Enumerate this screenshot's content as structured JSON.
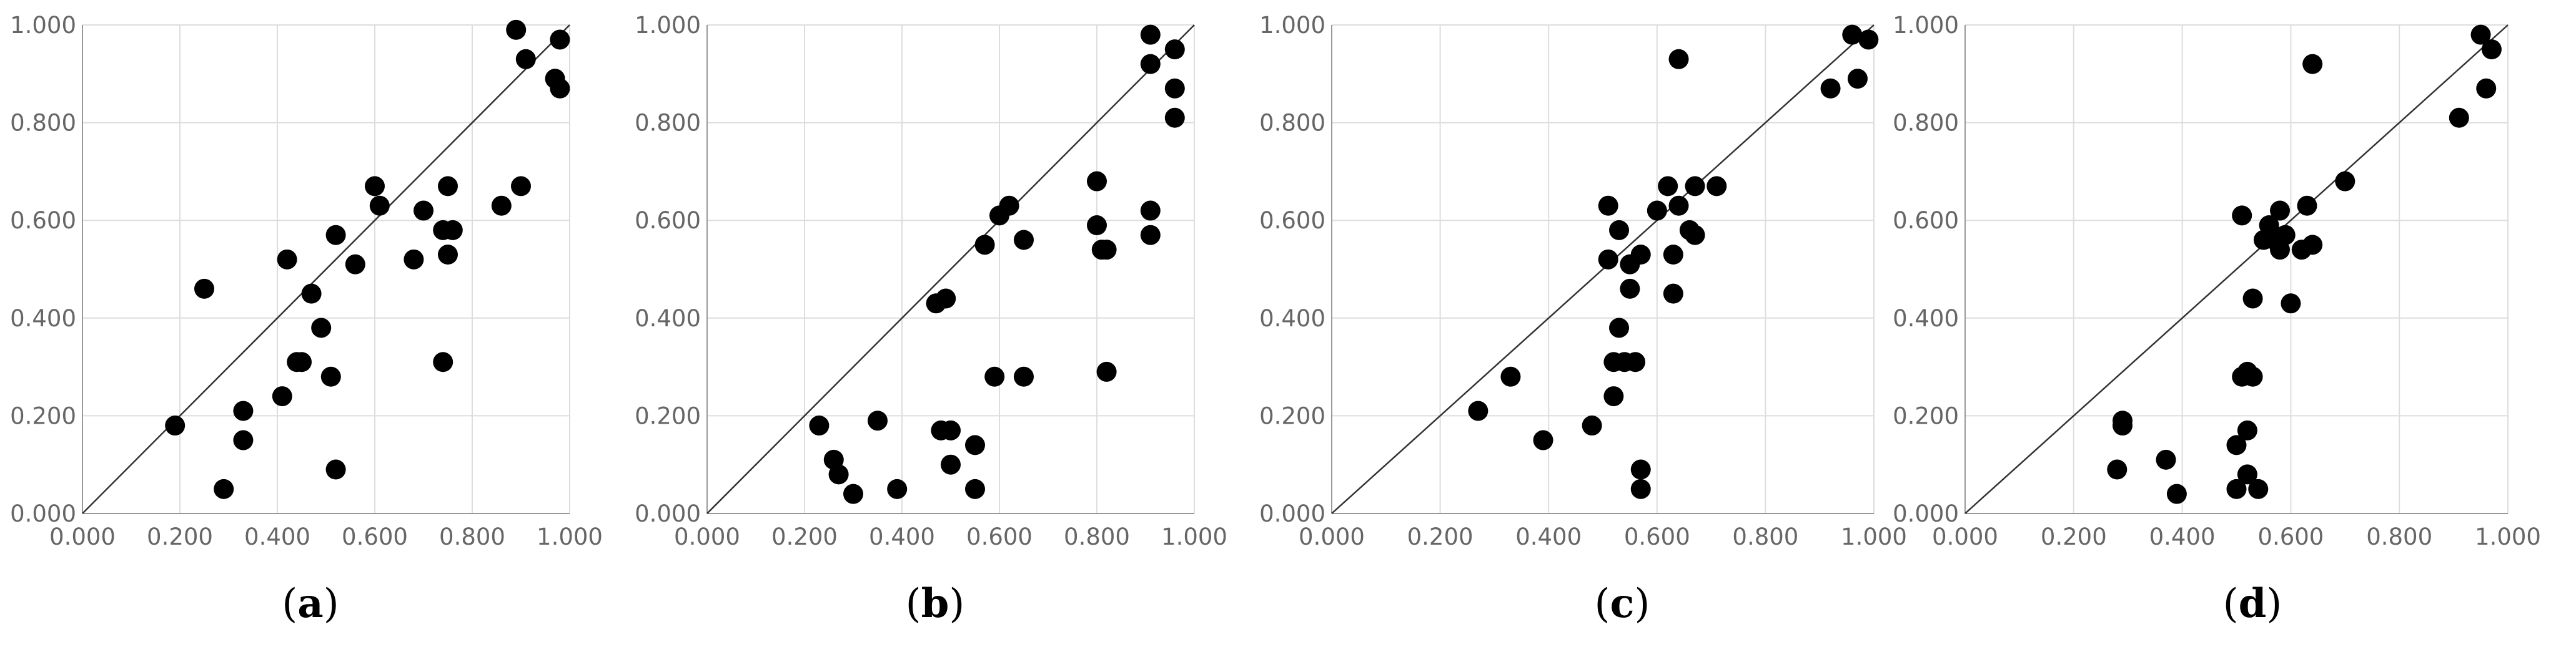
{
  "chart_data": [
    {
      "type": "scatter",
      "panel_label": "a",
      "xlim": [
        0,
        1
      ],
      "ylim": [
        0,
        1
      ],
      "xticks": [
        "0.000",
        "0.200",
        "0.400",
        "0.600",
        "0.800",
        "1.000"
      ],
      "yticks": [
        "0.000",
        "0.200",
        "0.400",
        "0.600",
        "0.800",
        "1.000"
      ],
      "grid": true,
      "reference_line": "y = x",
      "points": [
        [
          0.19,
          0.18
        ],
        [
          0.25,
          0.46
        ],
        [
          0.29,
          0.05
        ],
        [
          0.33,
          0.21
        ],
        [
          0.33,
          0.15
        ],
        [
          0.41,
          0.24
        ],
        [
          0.42,
          0.52
        ],
        [
          0.44,
          0.31
        ],
        [
          0.45,
          0.31
        ],
        [
          0.47,
          0.45
        ],
        [
          0.49,
          0.38
        ],
        [
          0.51,
          0.28
        ],
        [
          0.52,
          0.57
        ],
        [
          0.52,
          0.09
        ],
        [
          0.56,
          0.51
        ],
        [
          0.6,
          0.67
        ],
        [
          0.61,
          0.63
        ],
        [
          0.68,
          0.52
        ],
        [
          0.7,
          0.62
        ],
        [
          0.74,
          0.58
        ],
        [
          0.74,
          0.31
        ],
        [
          0.75,
          0.67
        ],
        [
          0.75,
          0.53
        ],
        [
          0.76,
          0.58
        ],
        [
          0.86,
          0.63
        ],
        [
          0.89,
          0.99
        ],
        [
          0.91,
          0.93
        ],
        [
          0.9,
          0.67
        ],
        [
          0.97,
          0.89
        ],
        [
          0.98,
          0.87
        ],
        [
          0.98,
          0.97
        ]
      ]
    },
    {
      "type": "scatter",
      "panel_label": "b",
      "xlim": [
        0,
        1
      ],
      "ylim": [
        0,
        1
      ],
      "xticks": [
        "0.000",
        "0.200",
        "0.400",
        "0.600",
        "0.800",
        "1.000"
      ],
      "yticks": [
        "0.000",
        "0.200",
        "0.400",
        "0.600",
        "0.800",
        "1.000"
      ],
      "grid": true,
      "reference_line": "y = x",
      "points": [
        [
          0.23,
          0.18
        ],
        [
          0.26,
          0.11
        ],
        [
          0.27,
          0.08
        ],
        [
          0.3,
          0.04
        ],
        [
          0.35,
          0.19
        ],
        [
          0.39,
          0.05
        ],
        [
          0.47,
          0.43
        ],
        [
          0.48,
          0.17
        ],
        [
          0.49,
          0.44
        ],
        [
          0.5,
          0.17
        ],
        [
          0.5,
          0.1
        ],
        [
          0.55,
          0.14
        ],
        [
          0.55,
          0.05
        ],
        [
          0.57,
          0.55
        ],
        [
          0.59,
          0.28
        ],
        [
          0.6,
          0.61
        ],
        [
          0.62,
          0.63
        ],
        [
          0.65,
          0.56
        ],
        [
          0.65,
          0.28
        ],
        [
          0.8,
          0.68
        ],
        [
          0.8,
          0.59
        ],
        [
          0.81,
          0.54
        ],
        [
          0.82,
          0.54
        ],
        [
          0.82,
          0.29
        ],
        [
          0.91,
          0.98
        ],
        [
          0.91,
          0.92
        ],
        [
          0.91,
          0.62
        ],
        [
          0.91,
          0.57
        ],
        [
          0.96,
          0.95
        ],
        [
          0.96,
          0.87
        ],
        [
          0.96,
          0.81
        ]
      ]
    },
    {
      "type": "scatter",
      "panel_label": "c",
      "xlim": [
        0,
        1
      ],
      "ylim": [
        0,
        1
      ],
      "xticks": [
        "0.000",
        "0.200",
        "0.400",
        "0.600",
        "0.800",
        "1.000"
      ],
      "yticks": [
        "0.000",
        "0.200",
        "0.400",
        "0.600",
        "0.800",
        "1.000"
      ],
      "grid": true,
      "reference_line": "y = x",
      "points": [
        [
          0.27,
          0.21
        ],
        [
          0.33,
          0.28
        ],
        [
          0.39,
          0.15
        ],
        [
          0.48,
          0.18
        ],
        [
          0.51,
          0.63
        ],
        [
          0.51,
          0.52
        ],
        [
          0.52,
          0.31
        ],
        [
          0.52,
          0.24
        ],
        [
          0.53,
          0.58
        ],
        [
          0.53,
          0.38
        ],
        [
          0.54,
          0.31
        ],
        [
          0.55,
          0.46
        ],
        [
          0.55,
          0.51
        ],
        [
          0.56,
          0.31
        ],
        [
          0.57,
          0.53
        ],
        [
          0.57,
          0.09
        ],
        [
          0.57,
          0.05
        ],
        [
          0.6,
          0.62
        ],
        [
          0.62,
          0.67
        ],
        [
          0.63,
          0.53
        ],
        [
          0.63,
          0.45
        ],
        [
          0.64,
          0.93
        ],
        [
          0.64,
          0.63
        ],
        [
          0.66,
          0.58
        ],
        [
          0.67,
          0.57
        ],
        [
          0.67,
          0.67
        ],
        [
          0.71,
          0.67
        ],
        [
          0.92,
          0.87
        ],
        [
          0.96,
          0.98
        ],
        [
          0.97,
          0.89
        ],
        [
          0.99,
          0.97
        ]
      ]
    },
    {
      "type": "scatter",
      "panel_label": "d",
      "xlim": [
        0,
        1
      ],
      "ylim": [
        0,
        1
      ],
      "xticks": [
        "0.000",
        "0.200",
        "0.400",
        "0.600",
        "0.800",
        "1.000"
      ],
      "yticks": [
        "0.000",
        "0.200",
        "0.400",
        "0.600",
        "0.800",
        "1.000"
      ],
      "grid": true,
      "reference_line": "y = x",
      "points": [
        [
          0.28,
          0.09
        ],
        [
          0.29,
          0.18
        ],
        [
          0.29,
          0.19
        ],
        [
          0.37,
          0.11
        ],
        [
          0.39,
          0.04
        ],
        [
          0.5,
          0.14
        ],
        [
          0.5,
          0.05
        ],
        [
          0.51,
          0.61
        ],
        [
          0.51,
          0.28
        ],
        [
          0.52,
          0.29
        ],
        [
          0.52,
          0.17
        ],
        [
          0.52,
          0.08
        ],
        [
          0.53,
          0.44
        ],
        [
          0.53,
          0.28
        ],
        [
          0.54,
          0.05
        ],
        [
          0.55,
          0.56
        ],
        [
          0.56,
          0.59
        ],
        [
          0.57,
          0.56
        ],
        [
          0.58,
          0.54
        ],
        [
          0.58,
          0.62
        ],
        [
          0.59,
          0.57
        ],
        [
          0.6,
          0.43
        ],
        [
          0.62,
          0.54
        ],
        [
          0.63,
          0.63
        ],
        [
          0.64,
          0.92
        ],
        [
          0.64,
          0.55
        ],
        [
          0.7,
          0.68
        ],
        [
          0.91,
          0.81
        ],
        [
          0.95,
          0.98
        ],
        [
          0.96,
          0.87
        ],
        [
          0.97,
          0.95
        ]
      ]
    }
  ]
}
